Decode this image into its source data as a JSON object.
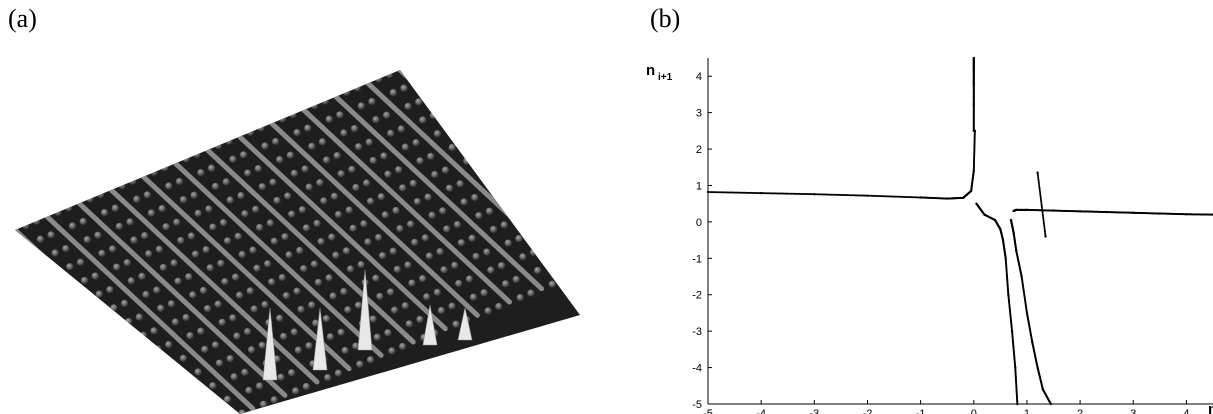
{
  "panels": {
    "a_label": "(a)",
    "b_label": "(b)"
  },
  "chart_data": [
    {
      "type": "surface",
      "panel": "a",
      "description_visible": "3D lattice surface with diagonal ridges and localized peaks",
      "colors": {
        "surface": "#1e1e1e",
        "ridge": "#8a8a8a",
        "bump": "#6e6e6e",
        "peak": "#e8e8e8"
      }
    },
    {
      "type": "scatter",
      "panel": "b",
      "ylabel_main": "n",
      "ylabel_sub": "i+1",
      "xlabel_main": "n",
      "xlim": [
        -5,
        4.5
      ],
      "ylim": [
        -5,
        4.5
      ],
      "xticks": [
        -5,
        -4,
        -3,
        -2,
        -1,
        0,
        1,
        2,
        3,
        4
      ],
      "yticks": [
        -5,
        -4,
        -3,
        -2,
        -1,
        0,
        1,
        2,
        3,
        4
      ],
      "grid": false,
      "point_color": "#000000",
      "series": [
        {
          "points": [
            [
              -5,
              0.82
            ],
            [
              -4,
              0.79
            ],
            [
              -3,
              0.76
            ],
            [
              -2,
              0.72
            ],
            [
              -1,
              0.67
            ],
            [
              -0.5,
              0.64
            ],
            [
              -0.2,
              0.66
            ],
            [
              -0.05,
              0.85
            ],
            [
              0,
              1.4
            ],
            [
              0.02,
              2.5
            ]
          ]
        },
        {
          "points": [
            [
              0.0,
              2.5
            ],
            [
              0.0,
              3.2
            ],
            [
              0.0,
              3.8
            ],
            [
              0.0,
              4.2
            ],
            [
              0.0,
              4.5
            ]
          ]
        },
        {
          "points": [
            [
              0.05,
              0.5
            ],
            [
              0.2,
              0.2
            ],
            [
              0.4,
              0.05
            ],
            [
              0.5,
              -0.2
            ],
            [
              0.55,
              -0.5
            ],
            [
              0.6,
              -1.0
            ],
            [
              0.65,
              -2.0
            ],
            [
              0.72,
              -3.0
            ],
            [
              0.78,
              -4.0
            ],
            [
              0.82,
              -5.0
            ]
          ]
        },
        {
          "points": [
            [
              0.7,
              0.05
            ],
            [
              0.75,
              -0.3
            ],
            [
              0.8,
              -0.8
            ],
            [
              0.9,
              -1.5
            ],
            [
              1.0,
              -2.5
            ],
            [
              1.1,
              -3.3
            ],
            [
              1.2,
              -4.0
            ],
            [
              1.3,
              -4.6
            ],
            [
              1.45,
              -5.0
            ]
          ]
        },
        {
          "points": [
            [
              0.75,
              0.3
            ],
            [
              0.8,
              0.33
            ],
            [
              1.0,
              0.33
            ],
            [
              1.5,
              0.31
            ],
            [
              2.0,
              0.29
            ],
            [
              2.5,
              0.27
            ],
            [
              3.0,
              0.25
            ],
            [
              3.5,
              0.23
            ],
            [
              4.0,
              0.21
            ],
            [
              4.5,
              0.2
            ]
          ]
        },
        {
          "points": [
            [
              1.2,
              1.35
            ],
            [
              1.35,
              -0.4
            ]
          ]
        }
      ]
    }
  ]
}
